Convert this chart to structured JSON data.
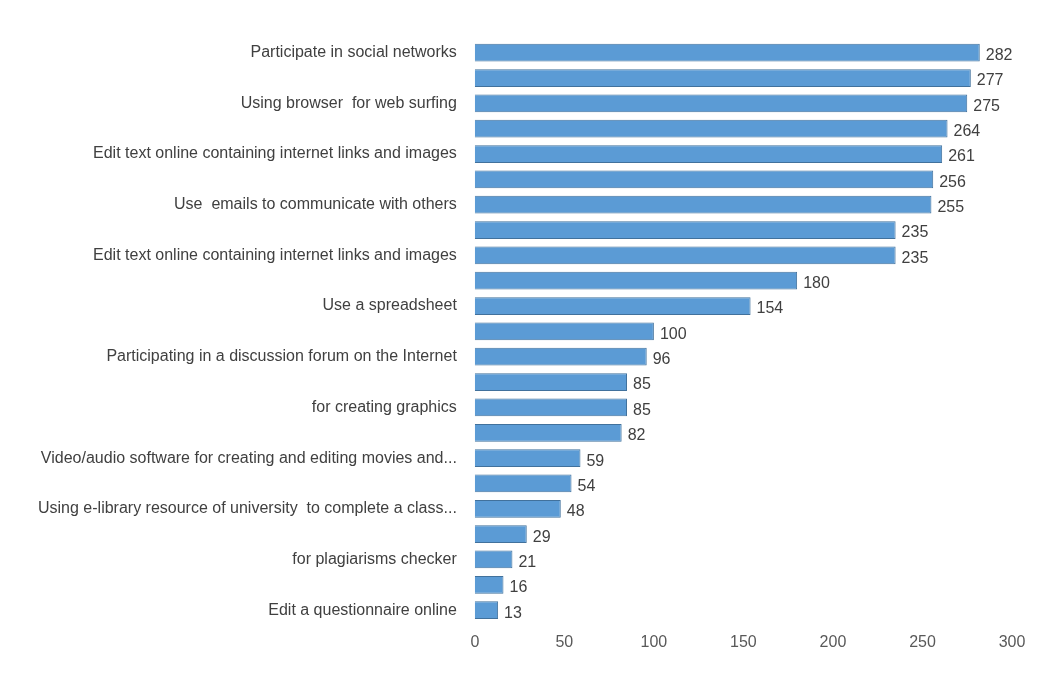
{
  "chart_data": {
    "type": "bar",
    "orientation": "horizontal",
    "categories": [
      "Participate in social networks",
      null,
      "Using browser  for web surfing",
      null,
      "Edit text online containing internet links and images",
      null,
      "Use  emails to communicate with others",
      null,
      "Edit text online containing internet links and images",
      null,
      "Use a spreadsheet",
      null,
      "Participating in a discussion forum on the Internet",
      null,
      "for creating graphics",
      null,
      "Video/audio software for creating and editing movies and...",
      null,
      "Using e-library resource of university  to complete a class...",
      null,
      "for plagiarisms checker",
      null,
      "Edit a questionnaire online"
    ],
    "values": [
      282,
      277,
      275,
      264,
      261,
      256,
      255,
      235,
      235,
      180,
      154,
      100,
      96,
      85,
      85,
      82,
      59,
      54,
      48,
      29,
      21,
      16,
      13
    ],
    "color": "#5b9bd5",
    "xlim": [
      0,
      300
    ],
    "xticks": [
      0,
      50,
      100,
      150,
      200,
      250,
      300
    ],
    "grid": false,
    "legend": false,
    "data_labels": true
  }
}
